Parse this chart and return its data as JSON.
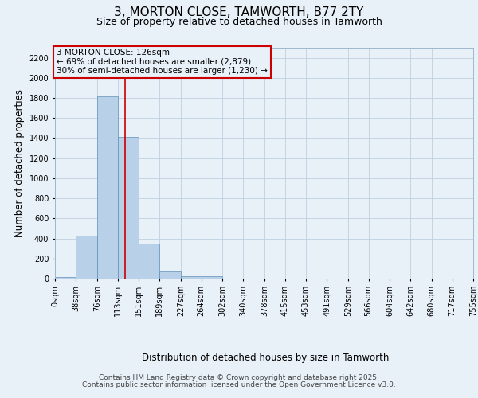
{
  "title": "3, MORTON CLOSE, TAMWORTH, B77 2TY",
  "subtitle": "Size of property relative to detached houses in Tamworth",
  "xlabel": "Distribution of detached houses by size in Tamworth",
  "ylabel": "Number of detached properties",
  "bar_edges": [
    0,
    38,
    76,
    113,
    151,
    189,
    227,
    264,
    302,
    340,
    378,
    415,
    453,
    491,
    529,
    566,
    604,
    642,
    680,
    717,
    755
  ],
  "bar_heights": [
    15,
    430,
    1820,
    1410,
    350,
    75,
    25,
    20,
    0,
    0,
    0,
    0,
    0,
    0,
    0,
    0,
    0,
    0,
    0,
    0
  ],
  "bar_color": "#b8d0e8",
  "bar_edgecolor": "#6090b8",
  "grid_color": "#c0d0e0",
  "background_color": "#e8f0f8",
  "vline_x": 126,
  "vline_color": "#cc0000",
  "annotation_text": "3 MORTON CLOSE: 126sqm\n← 69% of detached houses are smaller (2,879)\n30% of semi-detached houses are larger (1,230) →",
  "annotation_box_color": "#cc0000",
  "ylim": [
    0,
    2300
  ],
  "yticks": [
    0,
    200,
    400,
    600,
    800,
    1000,
    1200,
    1400,
    1600,
    1800,
    2000,
    2200
  ],
  "tick_labels": [
    "0sqm",
    "38sqm",
    "76sqm",
    "113sqm",
    "151sqm",
    "189sqm",
    "227sqm",
    "264sqm",
    "302sqm",
    "340sqm",
    "378sqm",
    "415sqm",
    "453sqm",
    "491sqm",
    "529sqm",
    "566sqm",
    "604sqm",
    "642sqm",
    "680sqm",
    "717sqm",
    "755sqm"
  ],
  "footer_line1": "Contains HM Land Registry data © Crown copyright and database right 2025.",
  "footer_line2": "Contains public sector information licensed under the Open Government Licence v3.0.",
  "title_fontsize": 11,
  "subtitle_fontsize": 9,
  "axis_label_fontsize": 8.5,
  "tick_fontsize": 7,
  "annotation_fontsize": 7.5,
  "footer_fontsize": 6.5
}
